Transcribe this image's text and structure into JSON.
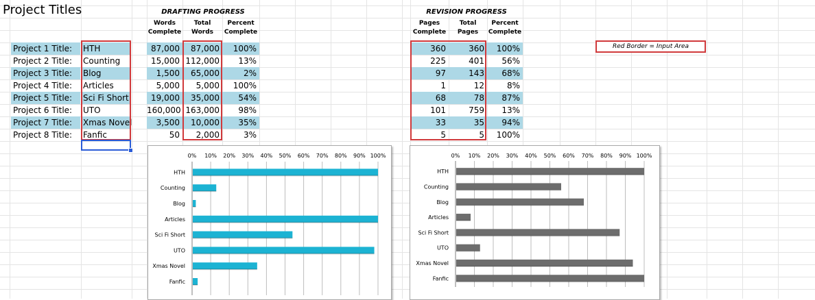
{
  "sheet": {
    "title": "Project Titles",
    "drafting_header": "DRAFTING PROGRESS",
    "revision_header": "REVISION PROGRESS",
    "drafting_subheaders": [
      [
        "Words",
        "Complete"
      ],
      [
        "Total",
        "Words"
      ],
      [
        "Percent",
        "Complete"
      ]
    ],
    "revision_subheaders": [
      [
        "Pages",
        "Complete"
      ],
      [
        "Total",
        "Pages"
      ],
      [
        "Percent",
        "Complete"
      ]
    ],
    "note": "Red Border = Input Area",
    "rows": [
      {
        "label": "Project 1 Title:",
        "name": "HTH",
        "words": "87,000",
        "total_words": "87,000",
        "draft_pct": "100%",
        "pages": "360",
        "total_pages": "360",
        "rev_pct": "100%",
        "shaded": true
      },
      {
        "label": "Project 2 Title:",
        "name": "Counting",
        "words": "15,000",
        "total_words": "112,000",
        "draft_pct": "13%",
        "pages": "225",
        "total_pages": "401",
        "rev_pct": "56%",
        "shaded": false
      },
      {
        "label": "Project 3 Title:",
        "name": "Blog",
        "words": "1,500",
        "total_words": "65,000",
        "draft_pct": "2%",
        "pages": "97",
        "total_pages": "143",
        "rev_pct": "68%",
        "shaded": true
      },
      {
        "label": "Project 4 Title:",
        "name": "Articles",
        "words": "5,000",
        "total_words": "5,000",
        "draft_pct": "100%",
        "pages": "1",
        "total_pages": "12",
        "rev_pct": "8%",
        "shaded": false
      },
      {
        "label": "Project 5 Title:",
        "name": "Sci Fi Short",
        "words": "19,000",
        "total_words": "35,000",
        "draft_pct": "54%",
        "pages": "68",
        "total_pages": "78",
        "rev_pct": "87%",
        "shaded": true
      },
      {
        "label": "Project 6 Title:",
        "name": "UTO",
        "words": "160,000",
        "total_words": "163,000",
        "draft_pct": "98%",
        "pages": "101",
        "total_pages": "759",
        "rev_pct": "13%",
        "shaded": false
      },
      {
        "label": "Project 7 Title:",
        "name": "Xmas Novel",
        "words": "3,500",
        "total_words": "10,000",
        "draft_pct": "35%",
        "pages": "33",
        "total_pages": "35",
        "rev_pct": "94%",
        "shaded": true
      },
      {
        "label": "Project 8 Title:",
        "name": "Fanfic",
        "words": "50",
        "total_words": "2,000",
        "draft_pct": "3%",
        "pages": "5",
        "total_pages": "5",
        "rev_pct": "100%",
        "shaded": false
      }
    ]
  },
  "colors": {
    "shade": "#add8e6",
    "input_border": "#d0393b",
    "selection": "#2a5cd7",
    "drafting_bar": "#1cb3d3",
    "revision_bar": "#6d6d6d"
  },
  "chart_data": [
    {
      "type": "bar",
      "orientation": "horizontal",
      "categories": [
        "HTH",
        "Counting",
        "Blog",
        "Articles",
        "Sci Fi Short",
        "UTO",
        "Xmas Novel",
        "Fanfic"
      ],
      "values": [
        1.0,
        0.13,
        0.02,
        1.0,
        0.54,
        0.98,
        0.35,
        0.03
      ],
      "ticks": [
        "0%",
        "10%",
        "20%",
        "30%",
        "40%",
        "50%",
        "60%",
        "70%",
        "80%",
        "90%",
        "100%"
      ],
      "xlim": [
        0,
        1
      ],
      "axis_position": "top",
      "grid": true,
      "color": "#1cb3d3"
    },
    {
      "type": "bar",
      "orientation": "horizontal",
      "categories": [
        "HTH",
        "Counting",
        "Blog",
        "Articles",
        "Sci Fi Short",
        "UTO",
        "Xmas Novel",
        "Fanfic"
      ],
      "values": [
        1.0,
        0.56,
        0.68,
        0.08,
        0.87,
        0.13,
        0.94,
        1.0
      ],
      "ticks": [
        "0%",
        "10%",
        "20%",
        "30%",
        "40%",
        "50%",
        "60%",
        "70%",
        "80%",
        "90%",
        "100%"
      ],
      "xlim": [
        0,
        1
      ],
      "axis_position": "top",
      "grid": true,
      "color": "#6d6d6d"
    }
  ]
}
